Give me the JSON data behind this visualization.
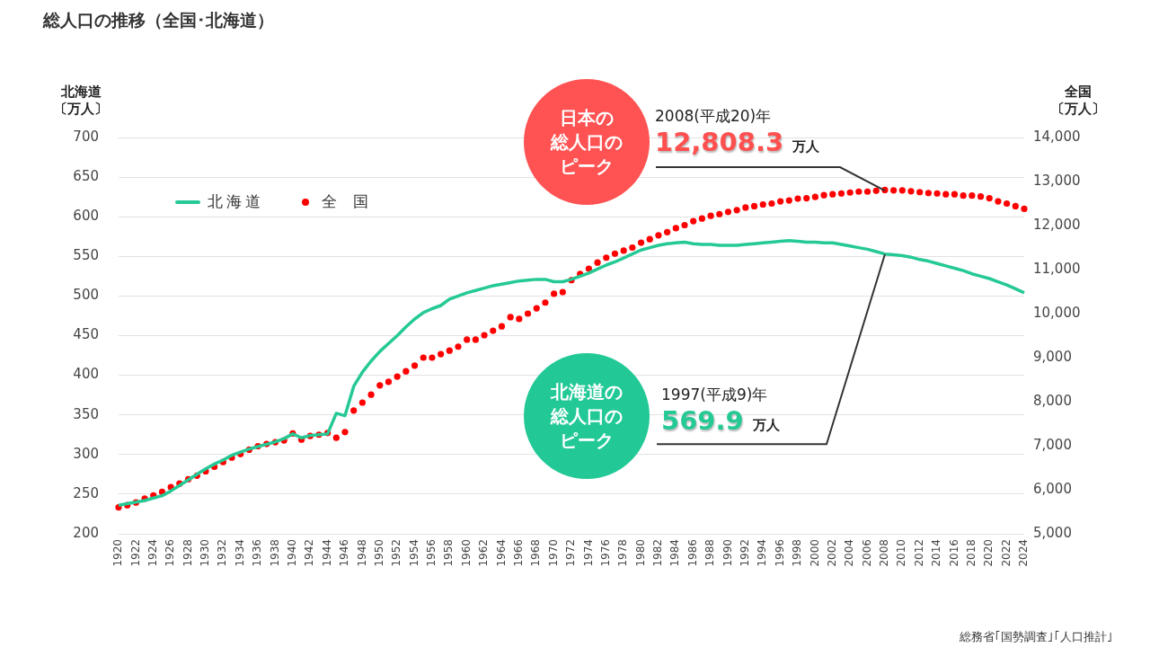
{
  "chart_data": {
    "type": "line",
    "title": "総人口の推移（全国･北海道）",
    "ylabel": "北海道〔万人〕",
    "y2label": "全国〔万人〕",
    "categories": [
      "1920",
      null,
      "1922",
      null,
      "1924",
      null,
      "1926",
      null,
      "1928",
      null,
      "1930",
      null,
      "1932",
      null,
      "1934",
      null,
      "1936",
      null,
      "1938",
      null,
      "1940",
      null,
      "1942",
      null,
      "1944",
      null,
      "1946",
      null,
      "1948",
      null,
      "1950",
      null,
      "1952",
      null,
      "1954",
      null,
      "1956",
      null,
      "1958",
      null,
      "1960",
      null,
      "1962",
      null,
      "1964",
      null,
      "1966",
      null,
      "1968",
      null,
      "1970",
      null,
      "1972",
      null,
      "1974",
      null,
      "1976",
      null,
      "1978",
      null,
      "1980",
      null,
      "1982",
      null,
      "1984",
      null,
      "1986",
      null,
      "1988",
      null,
      "1990",
      null,
      "1992",
      null,
      "1994",
      null,
      "1996",
      null,
      "1998",
      null,
      "2000",
      null,
      "2002",
      null,
      "2004",
      null,
      "2006",
      null,
      "2008",
      null,
      "2010",
      null,
      "2012",
      null,
      "2014",
      null,
      "2016",
      null,
      "2018",
      null,
      "2020",
      null,
      "2022",
      null,
      "2024"
    ],
    "series": [
      {
        "name": "北海道",
        "type": "line",
        "color": "#25c995",
        "values": [
          236,
          238,
          240,
          242,
          245,
          248,
          254,
          261,
          268,
          275,
          282,
          288,
          293,
          299,
          303,
          307,
          310,
          313,
          316,
          320,
          326,
          321,
          324,
          325,
          326,
          352,
          349,
          386,
          404,
          418,
          430,
          440,
          450,
          461,
          471,
          479,
          484,
          488,
          496,
          500,
          504,
          507,
          510,
          513,
          515,
          517,
          519,
          520,
          521,
          521,
          518,
          518,
          521,
          525,
          529,
          534,
          539,
          543,
          548,
          553,
          558,
          561,
          564,
          566,
          567,
          568,
          566,
          565,
          565,
          564,
          564,
          564,
          565,
          566,
          567,
          568,
          569,
          570,
          569,
          568,
          568,
          567,
          567,
          565,
          563,
          561,
          559,
          556,
          553,
          552,
          551,
          549,
          546,
          544,
          541,
          538,
          535,
          532,
          528,
          525,
          522,
          518,
          514,
          509,
          504
        ]
      },
      {
        "name": "全国",
        "type": "scatter",
        "axis": "y2",
        "marker": "circle",
        "color": "#ff0000",
        "values": [
          5600,
          5650,
          5710,
          5800,
          5870,
          5950,
          6060,
          6140,
          6240,
          6320,
          6420,
          6520,
          6630,
          6730,
          6810,
          6910,
          6990,
          7040,
          7080,
          7120,
          7280,
          7140,
          7220,
          7250,
          7290,
          7180,
          7310,
          7800,
          7980,
          8160,
          8370,
          8450,
          8570,
          8690,
          8820,
          9000,
          9000,
          9080,
          9160,
          9250,
          9410,
          9410,
          9510,
          9610,
          9710,
          9920,
          9880,
          10000,
          10120,
          10250,
          10450,
          10490,
          10760,
          10900,
          11020,
          11160,
          11270,
          11360,
          11430,
          11500,
          11610,
          11690,
          11780,
          11850,
          11940,
          12010,
          12100,
          12160,
          12220,
          12260,
          12310,
          12350,
          12410,
          12440,
          12480,
          12500,
          12550,
          12570,
          12610,
          12620,
          12650,
          12690,
          12710,
          12730,
          12750,
          12770,
          12770,
          12790,
          12808.3,
          12800,
          12800,
          12780,
          12760,
          12740,
          12730,
          12710,
          12710,
          12680,
          12680,
          12660,
          12620,
          12550,
          12500,
          12440,
          12380
        ]
      }
    ],
    "ylim": [
      200,
      700
    ],
    "yticks": [
      200,
      250,
      300,
      350,
      400,
      450,
      500,
      550,
      600,
      650,
      700
    ],
    "y2lim": [
      5000,
      14000
    ],
    "y2ticks": [
      {
        "value": 5000,
        "label": "5,000"
      },
      {
        "value": 6000,
        "label": "6,000"
      },
      {
        "value": 7000,
        "label": "7,000"
      },
      {
        "value": 8000,
        "label": "8,000"
      },
      {
        "value": 9000,
        "label": "9,000"
      },
      {
        "value": 10000,
        "label": "10,000"
      },
      {
        "value": 11000,
        "label": "11,000"
      },
      {
        "value": 12000,
        "label": "12,000"
      },
      {
        "value": 13000,
        "label": "13,000"
      },
      {
        "value": 14000,
        "label": "14,000"
      }
    ],
    "grid": "y",
    "legend": "top left",
    "annotations": [
      "日本の",
      "総人口の",
      "ピーク",
      "2008(平成20)年",
      {
        "text": "12,808.3",
        "x": "2008",
        "y": 633
      },
      "万人",
      "北海道の",
      "総人口の",
      "ピーク",
      "1997(平成9)年",
      {
        "text": "569.9",
        "x": "2008",
        "y": 553
      },
      "万人",
      "総務省｢国勢調査｣｢人口推計｣"
    ]
  }
}
